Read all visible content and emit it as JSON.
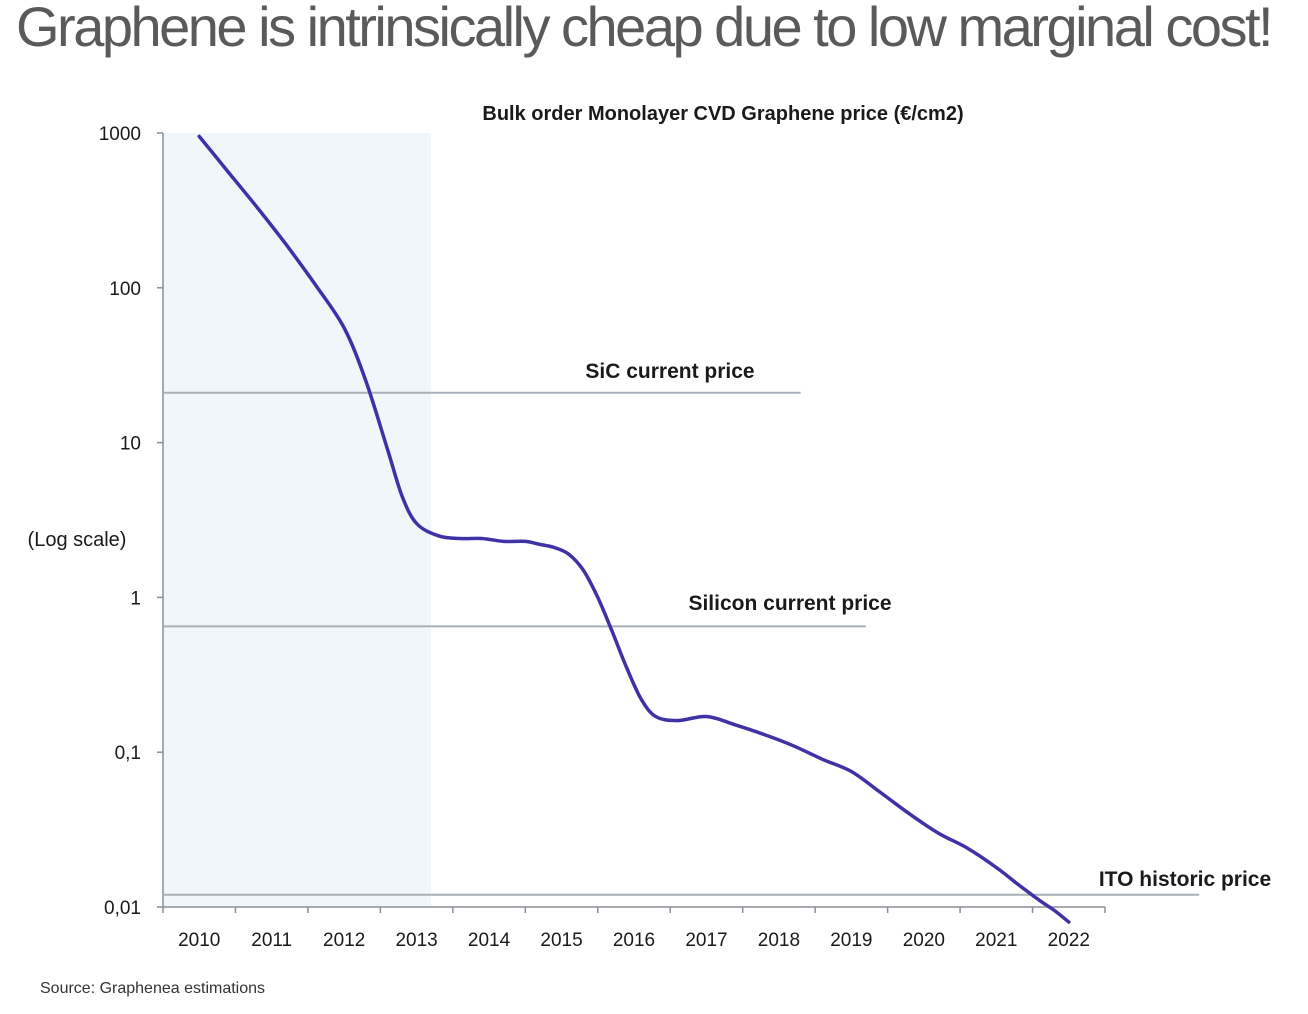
{
  "headline": "Graphene is intrinsically cheap due to low marginal cost!",
  "source": "Source: Graphenea estimations",
  "colors": {
    "series": "#3f32a6",
    "shade": "#f1f6fb",
    "reference_line": "#a7b0b8",
    "axis": "#8a8f96"
  },
  "chart_data": {
    "type": "line",
    "title": "Bulk order Monolayer CVD Graphene price (€/cm2)",
    "xlabel": "",
    "ylabel": "(Log scale)",
    "yscale": "log",
    "ylim": [
      0.01,
      1000
    ],
    "xlim": [
      2009.5,
      2022.5
    ],
    "categories": [
      "2010",
      "2011",
      "2012",
      "2013",
      "2014",
      "2015",
      "2016",
      "2017",
      "2018",
      "2019",
      "2020",
      "2021",
      "2022"
    ],
    "y_ticks": [
      1000,
      100,
      10,
      1,
      0.1,
      0.01
    ],
    "y_tick_labels": [
      "1000",
      "100",
      "10",
      "1",
      "0,1",
      "0,01"
    ],
    "shaded_range": [
      2009.5,
      2013.2
    ],
    "series": [
      {
        "x": [
          2010.0,
          2010.4,
          2010.8,
          2011.2,
          2011.6,
          2012.0,
          2012.3,
          2012.6,
          2012.8,
          2013.0,
          2013.3,
          2013.6,
          2013.9,
          2014.2,
          2014.5,
          2014.7,
          2014.9,
          2015.1,
          2015.3,
          2015.5,
          2015.7,
          2015.9,
          2016.1,
          2016.3,
          2016.6,
          2017.0,
          2017.4,
          2017.8,
          2018.2,
          2018.6,
          2019.0,
          2019.4,
          2019.8,
          2020.2,
          2020.6,
          2021.0,
          2021.3,
          2021.6,
          2021.8,
          2022.0
        ],
        "values": [
          950,
          560,
          330,
          190,
          105,
          55,
          25,
          9,
          4.5,
          3,
          2.5,
          2.4,
          2.4,
          2.3,
          2.3,
          2.2,
          2.1,
          1.9,
          1.5,
          1,
          0.6,
          0.35,
          0.22,
          0.17,
          0.16,
          0.17,
          0.15,
          0.13,
          0.11,
          0.09,
          0.075,
          0.055,
          0.04,
          0.03,
          0.024,
          0.018,
          0.014,
          0.011,
          0.0095,
          0.008
        ]
      }
    ],
    "reference_lines": [
      {
        "label": "SiC current price",
        "value": 21,
        "x_start": 2009.5,
        "x_end": 2018.3
      },
      {
        "label": "Silicon current price",
        "value": 0.65,
        "x_start": 2009.5,
        "x_end": 2019.2
      },
      {
        "label": "ITO historic price",
        "value": 0.012,
        "x_start": 2009.5,
        "x_end": 2023.8
      }
    ],
    "grid": false,
    "legend": "none"
  }
}
